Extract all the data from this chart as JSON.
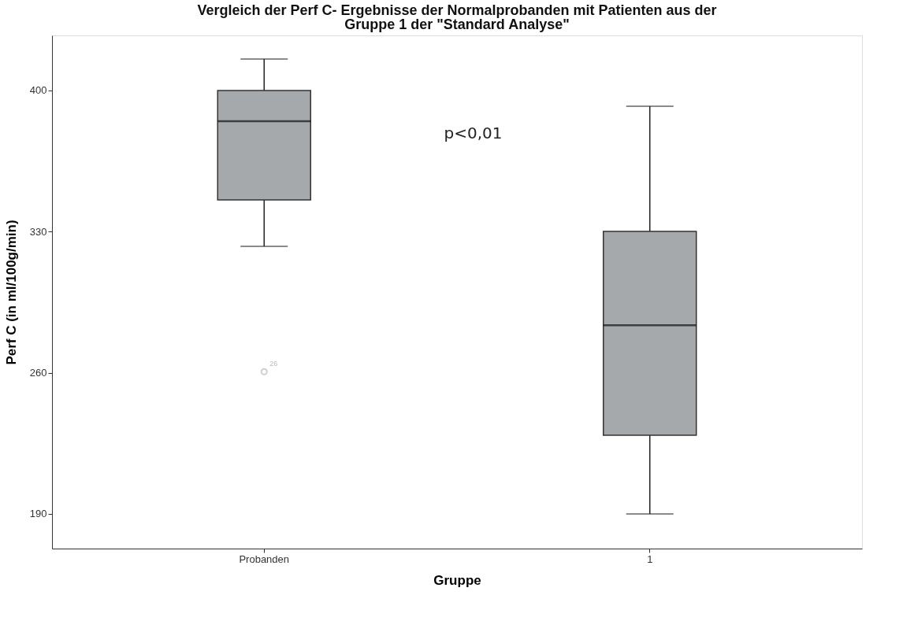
{
  "chart_data": {
    "type": "box",
    "title": "Vergleich der Perf C- Ergebnisse der Normalprobanden mit Patienten aus der Gruppe 1 der \"Standard Analyse\"",
    "xlabel": "Gruppe",
    "ylabel": "Perf C (in ml/100g/min)",
    "categories": [
      "Probanden",
      "1"
    ],
    "series": [
      {
        "color": "#a6a9ac",
        "boxes": [
          {
            "low": 322.7,
            "q1": 345.7,
            "median": 384.8,
            "q3": 400,
            "high": 415.6,
            "outliers": [
              260.5
            ]
          },
          {
            "low": 190,
            "q1": 229,
            "median": 283.6,
            "q3": 330.1,
            "high": 392.2
          }
        ]
      }
    ],
    "ylim": [
      172.8,
      427.3
    ],
    "yticks": [
      190,
      260,
      330,
      400
    ],
    "grid": false,
    "annotations": [
      "p<0,01",
      "26"
    ]
  }
}
